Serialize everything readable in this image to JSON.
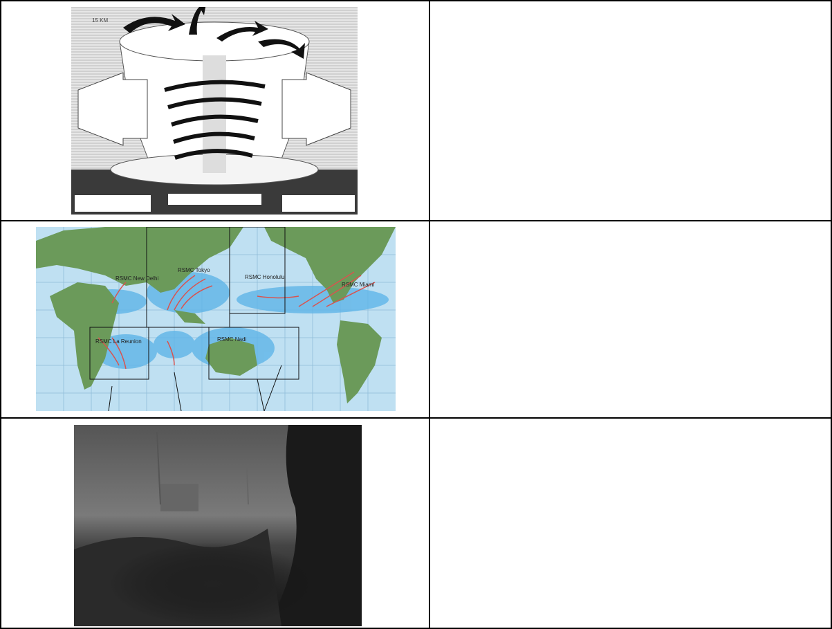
{
  "table": {
    "rows": [
      {
        "labels": [
          "15 KM"
        ]
      },
      {
        "labels": [
          "RSMC New Delhi",
          "RSMC Tokyo",
          "RSMC Honolulu",
          "RSMC Miami",
          "RSMC La Reunion",
          "RSMC Nadi"
        ]
      }
    ]
  }
}
